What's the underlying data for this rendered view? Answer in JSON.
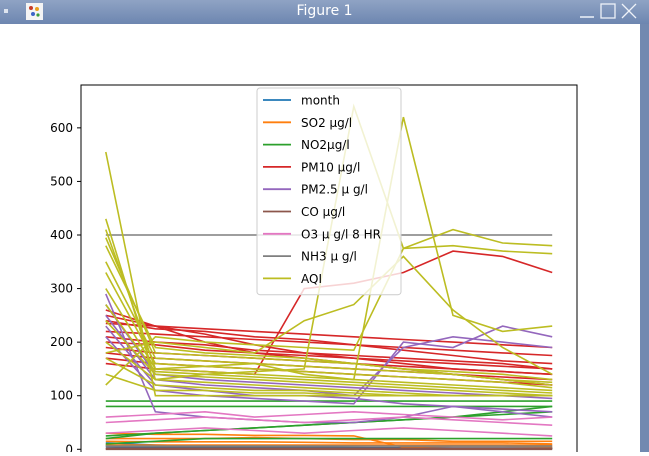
{
  "window": {
    "title": "Figure 1"
  },
  "chart_data": {
    "type": "line",
    "title": "",
    "xlabel": "",
    "ylabel": "",
    "ylim": [
      -20,
      680
    ],
    "xlim": [
      -0.5,
      9.5
    ],
    "yticks": [
      0,
      100,
      200,
      300,
      400,
      500,
      600
    ],
    "ytick_labels": [
      "0",
      "100",
      "200",
      "300",
      "400",
      "500",
      "600"
    ],
    "legend": {
      "position": "upper center"
    },
    "grid": false,
    "series": [
      {
        "name": "month",
        "color": "#1f77b4",
        "lines": [
          [
            12,
            8,
            6,
            4,
            4,
            3,
            3,
            2,
            2,
            2
          ],
          [
            8,
            6,
            5,
            4,
            4,
            3,
            2,
            2,
            2,
            2
          ],
          [
            5,
            4,
            4,
            3,
            3,
            3,
            2,
            2,
            2,
            2
          ]
        ]
      },
      {
        "name": "SO2 µg/l",
        "color": "#ff7f0e",
        "lines": [
          [
            20,
            20,
            20,
            22,
            20,
            18,
            18,
            15,
            15,
            15
          ],
          [
            15,
            14,
            14,
            14,
            13,
            12,
            12,
            12,
            12,
            10
          ],
          [
            8,
            8,
            8,
            8,
            8,
            8,
            8,
            8,
            8,
            8
          ],
          [
            30,
            28,
            28,
            26,
            26,
            25,
            4,
            6,
            6,
            5
          ]
        ]
      },
      {
        "name": "NO2µg/l",
        "color": "#2ca02c",
        "lines": [
          [
            20,
            30,
            35,
            40,
            45,
            50,
            55,
            60,
            70,
            80
          ],
          [
            25,
            30,
            35,
            40,
            45,
            50,
            55,
            60,
            65,
            70
          ],
          [
            80,
            80,
            80,
            80,
            80,
            80,
            80,
            80,
            80,
            80
          ],
          [
            90,
            90,
            90,
            90,
            90,
            90,
            90,
            90,
            90,
            90
          ],
          [
            10,
            15,
            20,
            20,
            20,
            20,
            20,
            20,
            20,
            20
          ]
        ]
      },
      {
        "name": "PM10 µg/l",
        "color": "#d62728",
        "lines": [
          [
            235,
            230,
            225,
            220,
            215,
            210,
            205,
            200,
            195,
            190
          ],
          [
            220,
            215,
            210,
            205,
            200,
            195,
            190,
            185,
            180,
            175
          ],
          [
            210,
            200,
            195,
            185,
            180,
            175,
            170,
            165,
            160,
            150
          ],
          [
            200,
            195,
            185,
            180,
            175,
            170,
            165,
            160,
            155,
            150
          ],
          [
            190,
            180,
            175,
            170,
            165,
            160,
            155,
            150,
            145,
            140
          ],
          [
            180,
            170,
            165,
            160,
            155,
            150,
            145,
            140,
            135,
            130
          ],
          [
            170,
            160,
            155,
            150,
            145,
            140,
            135,
            130,
            125,
            120
          ],
          [
            240,
            225,
            220,
            210,
            205,
            195,
            185,
            175,
            165,
            160
          ],
          [
            250,
            230,
            215,
            195,
            180,
            170,
            160,
            150,
            145,
            140
          ],
          [
            260,
            230,
            200,
            180,
            170,
            160,
            150,
            140,
            130,
            120
          ],
          [
            160,
            150,
            145,
            140,
            300,
            310,
            330,
            370,
            360,
            330
          ]
        ]
      },
      {
        "name": "PM2.5 µ g/l",
        "color": "#9467bd",
        "lines": [
          [
            290,
            70,
            60,
            55,
            50,
            50,
            60,
            80,
            70,
            60
          ],
          [
            270,
            140,
            130,
            125,
            120,
            115,
            110,
            105,
            100,
            95
          ],
          [
            250,
            130,
            120,
            115,
            110,
            100,
            190,
            210,
            200,
            190
          ],
          [
            230,
            120,
            110,
            100,
            100,
            95,
            85,
            80,
            75,
            70
          ],
          [
            210,
            110,
            100,
            95,
            90,
            85,
            200,
            190,
            230,
            210
          ]
        ]
      },
      {
        "name": "CO µg/l",
        "color": "#8c564b",
        "lines": [
          [
            1,
            1,
            1,
            1,
            1,
            1,
            1,
            1,
            1,
            1
          ],
          [
            2,
            2,
            2,
            2,
            2,
            2,
            2,
            2,
            2,
            2
          ],
          [
            0,
            0,
            0,
            0,
            0,
            0,
            0,
            0,
            0,
            0
          ]
        ]
      },
      {
        "name": "O3 µ g/l 8 HR",
        "color": "#e377c2",
        "lines": [
          [
            60,
            65,
            70,
            60,
            65,
            70,
            65,
            60,
            55,
            60
          ],
          [
            50,
            55,
            60,
            55,
            50,
            55,
            60,
            55,
            50,
            45
          ],
          [
            30,
            35,
            40,
            35,
            30,
            35,
            40,
            35,
            30,
            25
          ]
        ]
      },
      {
        "name": "NH3  µ g/l",
        "color": "#7f7f7f",
        "lines": [
          [
            400,
            400,
            400,
            400,
            400,
            400,
            400,
            400,
            400,
            400
          ],
          [
            6,
            6,
            6,
            6,
            6,
            6,
            6,
            6,
            6,
            6
          ]
        ]
      },
      {
        "name": "AQI",
        "color": "#bcbd22",
        "lines": [
          [
            555,
            100,
            100,
            100,
            100,
            100,
            100,
            100,
            100,
            100
          ],
          [
            430,
            130,
            140,
            145,
            150,
            640,
            375,
            380,
            370,
            365
          ],
          [
            410,
            150,
            155,
            160,
            140,
            130,
            620,
            250,
            220,
            230
          ],
          [
            395,
            180,
            175,
            170,
            165,
            160,
            150,
            140,
            130,
            125
          ],
          [
            380,
            190,
            180,
            175,
            170,
            160,
            150,
            145,
            140,
            130
          ],
          [
            350,
            170,
            165,
            160,
            155,
            150,
            145,
            140,
            130,
            120
          ],
          [
            330,
            160,
            155,
            150,
            145,
            140,
            135,
            130,
            125,
            115
          ],
          [
            300,
            150,
            145,
            140,
            135,
            130,
            125,
            120,
            115,
            110
          ],
          [
            270,
            145,
            140,
            135,
            130,
            125,
            120,
            115,
            110,
            105
          ],
          [
            240,
            140,
            135,
            130,
            125,
            120,
            115,
            110,
            105,
            100
          ],
          [
            200,
            130,
            125,
            120,
            115,
            110,
            105,
            100,
            100,
            100
          ],
          [
            170,
            120,
            115,
            110,
            110,
            105,
            100,
            100,
            100,
            100
          ],
          [
            140,
            110,
            110,
            105,
            105,
            100,
            100,
            100,
            100,
            100
          ],
          [
            180,
            200,
            190,
            180,
            240,
            270,
            360,
            260,
            190,
            140
          ],
          [
            120,
            210,
            200,
            195,
            190,
            185,
            375,
            410,
            385,
            380
          ]
        ]
      }
    ]
  }
}
